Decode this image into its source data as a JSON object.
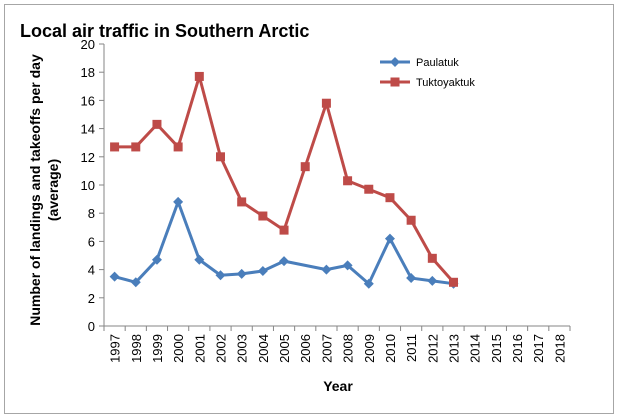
{
  "chart_data": {
    "type": "line",
    "title": "Local air traffic in Southern Arctic",
    "xlabel": "Year",
    "ylabel_lines": [
      "Number of landings and takeoffs per day",
      "(average)"
    ],
    "ylim": [
      0,
      20
    ],
    "yticks": [
      0,
      2,
      4,
      6,
      8,
      10,
      12,
      14,
      16,
      18,
      20
    ],
    "categories": [
      "1997",
      "1998",
      "1999",
      "2000",
      "2001",
      "2002",
      "2003",
      "2004",
      "2005",
      "2006",
      "2007",
      "2008",
      "2009",
      "2010",
      "2011",
      "2012",
      "2013",
      "2014",
      "2015",
      "2016",
      "2017",
      "2018"
    ],
    "grid": false,
    "legend_position": "top-right",
    "series": [
      {
        "name": "Paulatuk",
        "color": "#4a7ebb",
        "marker": "diamond",
        "x": [
          "1997",
          "1998",
          "1999",
          "2000",
          "2001",
          "2002",
          "2003",
          "2004",
          "2005",
          "2007",
          "2008",
          "2009",
          "2010",
          "2011",
          "2012",
          "2013"
        ],
        "values": [
          3.5,
          3.1,
          4.7,
          8.8,
          4.7,
          3.6,
          3.7,
          3.9,
          4.6,
          4.0,
          4.3,
          3.0,
          6.2,
          3.4,
          3.2,
          3.0
        ]
      },
      {
        "name": "Tuktoyaktuk",
        "color": "#be4b48",
        "marker": "square",
        "x": [
          "1997",
          "1998",
          "1999",
          "2000",
          "2001",
          "2002",
          "2003",
          "2004",
          "2005",
          "2006",
          "2007",
          "2008",
          "2009",
          "2010",
          "2011",
          "2012",
          "2013"
        ],
        "values": [
          12.7,
          12.7,
          14.3,
          12.7,
          17.7,
          12.0,
          8.8,
          7.8,
          6.8,
          11.3,
          15.8,
          10.3,
          9.7,
          9.1,
          7.5,
          4.8,
          3.1
        ]
      }
    ]
  }
}
